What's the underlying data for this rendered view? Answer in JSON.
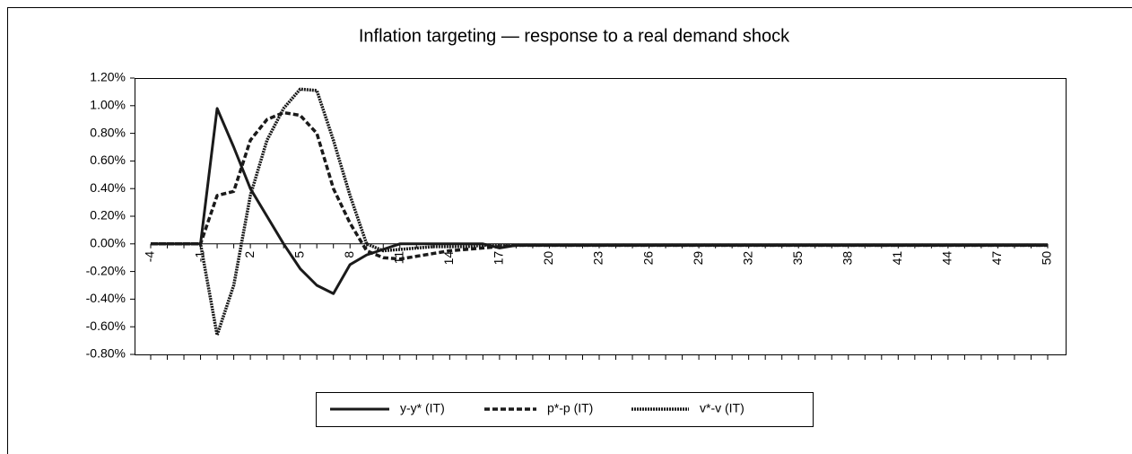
{
  "chart_data": {
    "type": "line",
    "title": "Inflation targeting — response to a real demand shock",
    "categories": [
      "-4",
      null,
      null,
      "-1",
      null,
      null,
      "2",
      null,
      null,
      "5",
      null,
      null,
      "8",
      null,
      null,
      "11",
      null,
      null,
      "14",
      null,
      null,
      "17",
      null,
      null,
      "20",
      null,
      null,
      "23",
      null,
      null,
      "26",
      null,
      null,
      "29",
      null,
      null,
      "32",
      null,
      null,
      "35",
      null,
      null,
      "38",
      null,
      null,
      "41",
      null,
      null,
      "44",
      null,
      null,
      "47",
      null,
      null,
      "50"
    ],
    "series": [
      {
        "name": "y-y* (IT)",
        "color": "#1a1a1a",
        "dash": "solid",
        "values": [
          0,
          0,
          0,
          0,
          0.98,
          0.7,
          0.4,
          0.2,
          0,
          -0.18,
          -0.3,
          -0.36,
          -0.15,
          -0.08,
          -0.04,
          0,
          0,
          0,
          0,
          0,
          0,
          -0.03,
          -0.01,
          -0.01,
          -0.01,
          -0.01,
          -0.01,
          -0.01,
          -0.01,
          -0.01,
          -0.01,
          -0.01,
          -0.01,
          -0.01,
          -0.01,
          -0.01,
          -0.01,
          -0.01,
          -0.01,
          -0.01,
          -0.01,
          -0.01,
          -0.01,
          -0.01,
          -0.01,
          -0.01,
          -0.01,
          -0.01,
          -0.01,
          -0.01,
          -0.01,
          -0.01,
          -0.01,
          -0.01,
          -0.01
        ]
      },
      {
        "name": "p*-p (IT)",
        "color": "#1a1a1a",
        "dash": "dash",
        "values": [
          0,
          0,
          0,
          0,
          0.35,
          0.38,
          0.75,
          0.9,
          0.95,
          0.93,
          0.8,
          0.4,
          0.15,
          -0.05,
          -0.1,
          -0.11,
          -0.09,
          -0.07,
          -0.05,
          -0.04,
          -0.03,
          -0.02,
          -0.01,
          -0.01,
          -0.01,
          -0.01,
          -0.01,
          -0.01,
          -0.01,
          -0.01,
          -0.01,
          -0.01,
          -0.01,
          -0.01,
          -0.01,
          -0.01,
          -0.01,
          -0.01,
          -0.01,
          -0.01,
          -0.01,
          -0.01,
          -0.01,
          -0.01,
          -0.01,
          -0.01,
          -0.01,
          -0.01,
          -0.01,
          -0.01,
          -0.01,
          -0.01,
          -0.01,
          -0.01,
          -0.01
        ]
      },
      {
        "name": "v*-v (IT)",
        "color": "#1a1a1a",
        "dash": "dot",
        "values": [
          0,
          0,
          0,
          0,
          -0.66,
          -0.3,
          0.35,
          0.75,
          0.98,
          1.12,
          1.11,
          0.75,
          0.35,
          0,
          -0.05,
          -0.04,
          -0.03,
          -0.02,
          -0.02,
          -0.02,
          -0.01,
          -0.01,
          -0.01,
          -0.01,
          -0.01,
          -0.01,
          -0.01,
          -0.01,
          -0.01,
          -0.01,
          -0.01,
          -0.01,
          -0.01,
          -0.01,
          -0.01,
          -0.01,
          -0.01,
          -0.01,
          -0.01,
          -0.01,
          -0.01,
          -0.01,
          -0.01,
          -0.01,
          -0.01,
          -0.01,
          -0.01,
          -0.01,
          -0.01,
          -0.01,
          -0.01,
          -0.01,
          -0.01,
          -0.01,
          -0.01
        ]
      }
    ],
    "ylim": [
      -0.8,
      1.2
    ],
    "yticks": [
      {
        "value": -0.8,
        "label": "-0.80%"
      },
      {
        "value": -0.6,
        "label": "-0.60%"
      },
      {
        "value": -0.4,
        "label": "-0.40%"
      },
      {
        "value": -0.2,
        "label": "-0.20%"
      },
      {
        "value": 0,
        "label": "0.00%"
      },
      {
        "value": 0.2,
        "label": "0.20%"
      },
      {
        "value": 0.4,
        "label": "0.40%"
      },
      {
        "value": 0.6,
        "label": "0.60%"
      },
      {
        "value": 0.8,
        "label": "0.80%"
      },
      {
        "value": 1.0,
        "label": "1.00%"
      },
      {
        "value": 1.2,
        "label": "1.20%"
      }
    ],
    "grid": false,
    "legend": "bottom"
  }
}
